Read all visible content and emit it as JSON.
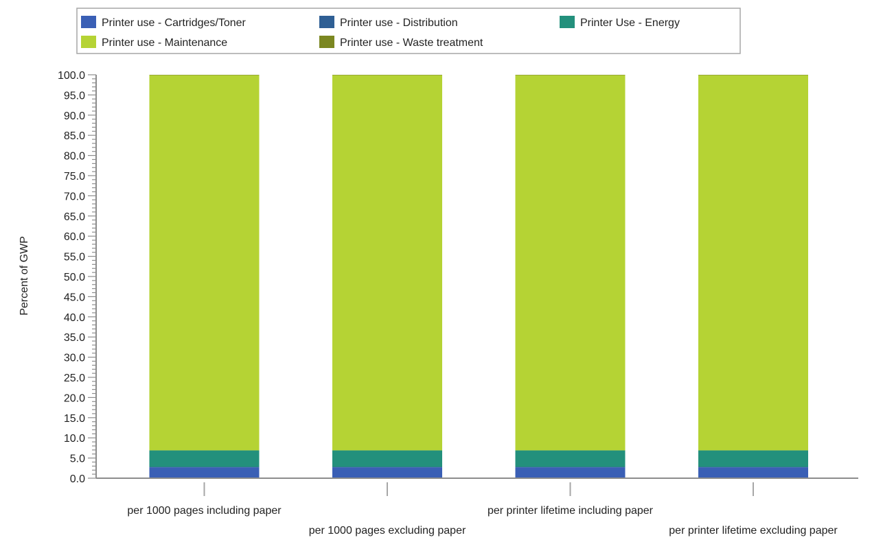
{
  "chart_data": {
    "type": "bar",
    "stacked": true,
    "title": "",
    "xlabel": "",
    "ylabel": "Percent of GWP",
    "ylim": [
      0,
      100
    ],
    "ytick_step": 5,
    "ytick_format": "one-decimal",
    "grid": false,
    "legend_position": "top",
    "categories": [
      "per 1000 pages including paper",
      "per 1000 pages excluding paper",
      "per printer lifetime including paper",
      "per printer lifetime excluding paper"
    ],
    "series": [
      {
        "name": "Printer use - Cartridges/Toner",
        "color": "#3a5fb5",
        "values": [
          2.7,
          2.7,
          2.7,
          2.7
        ]
      },
      {
        "name": "Printer use - Distribution",
        "color": "#2f5f94",
        "values": [
          0.1,
          0.1,
          0.1,
          0.1
        ]
      },
      {
        "name": "Printer Use - Energy",
        "color": "#23907c",
        "values": [
          4.1,
          4.1,
          4.1,
          4.1
        ]
      },
      {
        "name": "Printer use - Maintenance",
        "color": "#b5d334",
        "values": [
          93.0,
          93.0,
          93.0,
          93.0
        ]
      },
      {
        "name": "Printer use - Waste treatment",
        "color": "#7b8721",
        "values": [
          0.1,
          0.1,
          0.1,
          0.1
        ]
      }
    ]
  }
}
